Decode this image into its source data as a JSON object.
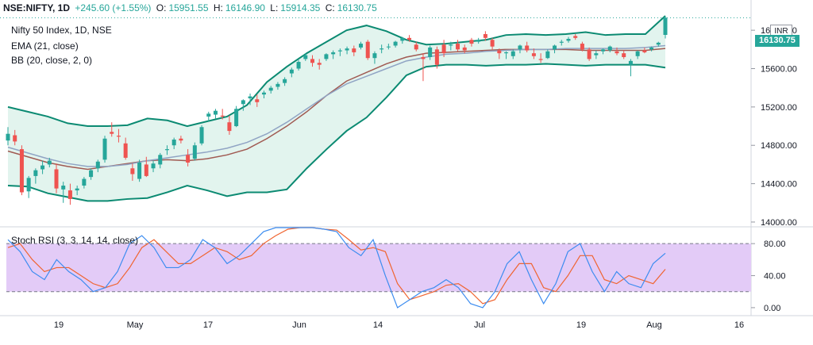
{
  "header": {
    "symbol": "NSE:NIFTY, 1D",
    "change": "+245.60 (+1.55%)",
    "o_label": "O:",
    "o_value": "15951.55",
    "h_label": "H:",
    "h_value": "16146.90",
    "l_label": "L:",
    "l_value": "15914.35",
    "c_label": "C:",
    "c_value": "16130.75"
  },
  "legend": {
    "title": "Nifty 50 Index, 1D, NSE",
    "ema": "EMA (21, close)",
    "bb": "BB (20, close, 2, 0)",
    "stoch": "Stoch RSI (3, 3, 14, 14, close)"
  },
  "currency": "INR",
  "last_price_label": "16130.75",
  "colors": {
    "up": "#26a69a",
    "down": "#ef5350",
    "bb_band": "#0b8a72",
    "bb_fill": "#e2f4ee",
    "ema": "#90a4c4",
    "bb_basis": "#a05a52",
    "k_line": "#3c8cf0",
    "d_line": "#f06430",
    "rsi_band": "#e3cbf7",
    "last_price_line": "#26a69a"
  },
  "chart_data": [
    {
      "type": "candlestick",
      "title": "Nifty 50 Index, 1D, NSE",
      "y_ticks": [
        "16000.00",
        "15600.00",
        "15200.00",
        "14800.00",
        "14400.00",
        "14000.00"
      ],
      "ylim": [
        13950,
        16150
      ],
      "x_ticks": [
        "19",
        "May",
        "17",
        "Jun",
        "14",
        "Jul",
        "19",
        "Aug",
        "16"
      ],
      "last_price": 16130.75,
      "candles": [
        [
          14850,
          14990,
          14800,
          14920
        ],
        [
          14905,
          14960,
          14800,
          14840
        ],
        [
          14760,
          14800,
          14280,
          14310
        ],
        [
          14320,
          14480,
          14250,
          14460
        ],
        [
          14480,
          14560,
          14400,
          14540
        ],
        [
          14550,
          14640,
          14500,
          14590
        ],
        [
          14600,
          14670,
          14570,
          14640
        ],
        [
          14550,
          14610,
          14300,
          14350
        ],
        [
          14340,
          14420,
          14200,
          14380
        ],
        [
          14330,
          14400,
          14180,
          14240
        ],
        [
          14330,
          14380,
          14280,
          14350
        ],
        [
          14380,
          14470,
          14350,
          14450
        ],
        [
          14470,
          14560,
          14440,
          14540
        ],
        [
          14560,
          14650,
          14520,
          14630
        ],
        [
          14650,
          14900,
          14620,
          14870
        ],
        [
          14940,
          15040,
          14890,
          14920
        ],
        [
          14900,
          14970,
          14830,
          14890
        ],
        [
          14820,
          14880,
          14650,
          14670
        ],
        [
          14560,
          14610,
          14430,
          14500
        ],
        [
          14450,
          14650,
          14420,
          14620
        ],
        [
          14600,
          14680,
          14470,
          14480
        ],
        [
          14560,
          14640,
          14520,
          14610
        ],
        [
          14600,
          14720,
          14560,
          14700
        ],
        [
          14750,
          14800,
          14700,
          14760
        ],
        [
          14800,
          14880,
          14760,
          14860
        ],
        [
          14870,
          14900,
          14820,
          14850
        ],
        [
          14700,
          14760,
          14580,
          14620
        ],
        [
          14660,
          14830,
          14640,
          14800
        ],
        [
          14820,
          15010,
          14800,
          14990
        ],
        [
          15100,
          15150,
          15050,
          15130
        ],
        [
          15120,
          15180,
          15080,
          15160
        ],
        [
          15110,
          15180,
          15070,
          15100
        ],
        [
          15040,
          15110,
          14910,
          14950
        ],
        [
          15000,
          15210,
          14990,
          15180
        ],
        [
          15230,
          15280,
          15160,
          15270
        ],
        [
          15290,
          15340,
          15220,
          15310
        ],
        [
          15280,
          15330,
          15200,
          15250
        ],
        [
          15330,
          15370,
          15290,
          15350
        ],
        [
          15370,
          15420,
          15340,
          15400
        ],
        [
          15410,
          15460,
          15380,
          15440
        ],
        [
          15450,
          15510,
          15420,
          15490
        ],
        [
          15550,
          15610,
          15510,
          15590
        ],
        [
          15600,
          15690,
          15580,
          15670
        ],
        [
          15700,
          15760,
          15680,
          15740
        ],
        [
          15700,
          15740,
          15620,
          15660
        ],
        [
          15660,
          15700,
          15590,
          15640
        ],
        [
          15700,
          15760,
          15680,
          15750
        ],
        [
          15750,
          15790,
          15700,
          15770
        ],
        [
          15780,
          15810,
          15730,
          15790
        ],
        [
          15790,
          15830,
          15750,
          15810
        ],
        [
          15810,
          15840,
          15730,
          15770
        ],
        [
          15820,
          15880,
          15800,
          15860
        ],
        [
          15880,
          15900,
          15690,
          15710
        ],
        [
          15710,
          15780,
          15650,
          15760
        ],
        [
          15800,
          15850,
          15760,
          15810
        ],
        [
          15830,
          15860,
          15800,
          15830
        ],
        [
          15840,
          15890,
          15820,
          15880
        ],
        [
          15890,
          15930,
          15860,
          15920
        ],
        [
          15920,
          15950,
          15880,
          15900
        ],
        [
          15850,
          15880,
          15780,
          15800
        ],
        [
          15720,
          15760,
          15470,
          15700
        ],
        [
          15720,
          15840,
          15690,
          15820
        ],
        [
          15800,
          15830,
          15600,
          15640
        ],
        [
          15850,
          15900,
          15720,
          15760
        ],
        [
          15840,
          15880,
          15790,
          15850
        ],
        [
          15860,
          15900,
          15780,
          15800
        ],
        [
          15820,
          15850,
          15760,
          15790
        ],
        [
          15900,
          15920,
          15830,
          15860
        ],
        [
          15880,
          15920,
          15860,
          15900
        ],
        [
          15960,
          15990,
          15890,
          15920
        ],
        [
          15900,
          15920,
          15800,
          15830
        ],
        [
          15790,
          15810,
          15700,
          15760
        ],
        [
          15760,
          15780,
          15700,
          15770
        ],
        [
          15730,
          15800,
          15700,
          15780
        ],
        [
          15800,
          15850,
          15760,
          15840
        ],
        [
          15840,
          15880,
          15770,
          15790
        ],
        [
          15760,
          15810,
          15700,
          15730
        ],
        [
          15700,
          15760,
          15660,
          15690
        ],
        [
          15710,
          15800,
          15700,
          15780
        ],
        [
          15800,
          15850,
          15760,
          15840
        ],
        [
          15870,
          15900,
          15840,
          15880
        ],
        [
          15890,
          15930,
          15870,
          15910
        ],
        [
          15940,
          15960,
          15900,
          15920
        ],
        [
          15860,
          15880,
          15780,
          15800
        ],
        [
          15800,
          15820,
          15680,
          15700
        ],
        [
          15740,
          15790,
          15700,
          15760
        ],
        [
          15780,
          15810,
          15750,
          15800
        ],
        [
          15790,
          15840,
          15770,
          15830
        ],
        [
          15780,
          15820,
          15740,
          15760
        ],
        [
          15760,
          15790,
          15700,
          15720
        ],
        [
          15640,
          15700,
          15520,
          15680
        ],
        [
          15730,
          15790,
          15700,
          15780
        ],
        [
          15790,
          15820,
          15760,
          15770
        ],
        [
          15800,
          15830,
          15780,
          15820
        ],
        [
          15850,
          15880,
          15830,
          15870
        ],
        [
          15951.55,
          16146.9,
          15914.35,
          16130.75
        ]
      ],
      "bb_upper": [
        15200,
        15150,
        15100,
        15030,
        15000,
        15000,
        15010,
        15080,
        15060,
        15000,
        15050,
        15100,
        15220,
        15460,
        15620,
        15760,
        15880,
        16000,
        16050,
        15990,
        15900,
        15850,
        15860,
        15880,
        15900,
        15950,
        15960,
        15950,
        15960,
        15980,
        15950,
        15960,
        15960,
        16150
      ],
      "bb_basis": [
        14740,
        14680,
        14620,
        14580,
        14550,
        14580,
        14610,
        14640,
        14650,
        14640,
        14660,
        14700,
        14760,
        14870,
        15000,
        15150,
        15320,
        15470,
        15560,
        15650,
        15720,
        15760,
        15770,
        15780,
        15790,
        15800,
        15800,
        15800,
        15800,
        15790,
        15790,
        15790,
        15790,
        15810
      ],
      "bb_lower": [
        14380,
        14370,
        14300,
        14260,
        14220,
        14220,
        14240,
        14250,
        14310,
        14380,
        14330,
        14270,
        14310,
        14310,
        14340,
        14560,
        14760,
        14950,
        15090,
        15300,
        15530,
        15620,
        15640,
        15640,
        15630,
        15640,
        15640,
        15650,
        15640,
        15630,
        15640,
        15640,
        15640,
        15610
      ],
      "ema21": [
        14780,
        14720,
        14660,
        14610,
        14580,
        14580,
        14600,
        14640,
        14670,
        14700,
        14730,
        14770,
        14830,
        14920,
        15040,
        15180,
        15320,
        15440,
        15520,
        15600,
        15680,
        15720,
        15750,
        15760,
        15780,
        15790,
        15800,
        15800,
        15810,
        15810,
        15810,
        15810,
        15820,
        15840
      ]
    },
    {
      "type": "line",
      "title": "Stoch RSI (3, 3, 14, 14, close)",
      "y_ticks": [
        "80.00",
        "40.00",
        "0.00"
      ],
      "ylim": [
        -10,
        100
      ],
      "bands": [
        20,
        80
      ],
      "series": [
        {
          "values": [
            85,
            70,
            45,
            35,
            60,
            45,
            35,
            20,
            25,
            45,
            80,
            90,
            75,
            50,
            50,
            60,
            85,
            75,
            55,
            65,
            80,
            95,
            100,
            100,
            100,
            100,
            98,
            95,
            75,
            65,
            85,
            40,
            0,
            10,
            20,
            25,
            35,
            25,
            5,
            0,
            20,
            55,
            70,
            35,
            5,
            30,
            70,
            80,
            45,
            20,
            45,
            30,
            25,
            55,
            68
          ]
        },
        {
          "values": [
            75,
            80,
            60,
            45,
            50,
            50,
            40,
            30,
            25,
            30,
            50,
            75,
            85,
            70,
            55,
            55,
            65,
            75,
            70,
            60,
            65,
            80,
            90,
            98,
            100,
            100,
            98,
            97,
            85,
            72,
            75,
            70,
            30,
            10,
            15,
            20,
            28,
            30,
            20,
            5,
            10,
            35,
            55,
            55,
            25,
            20,
            40,
            65,
            65,
            35,
            30,
            40,
            35,
            30,
            48
          ]
        }
      ]
    }
  ]
}
